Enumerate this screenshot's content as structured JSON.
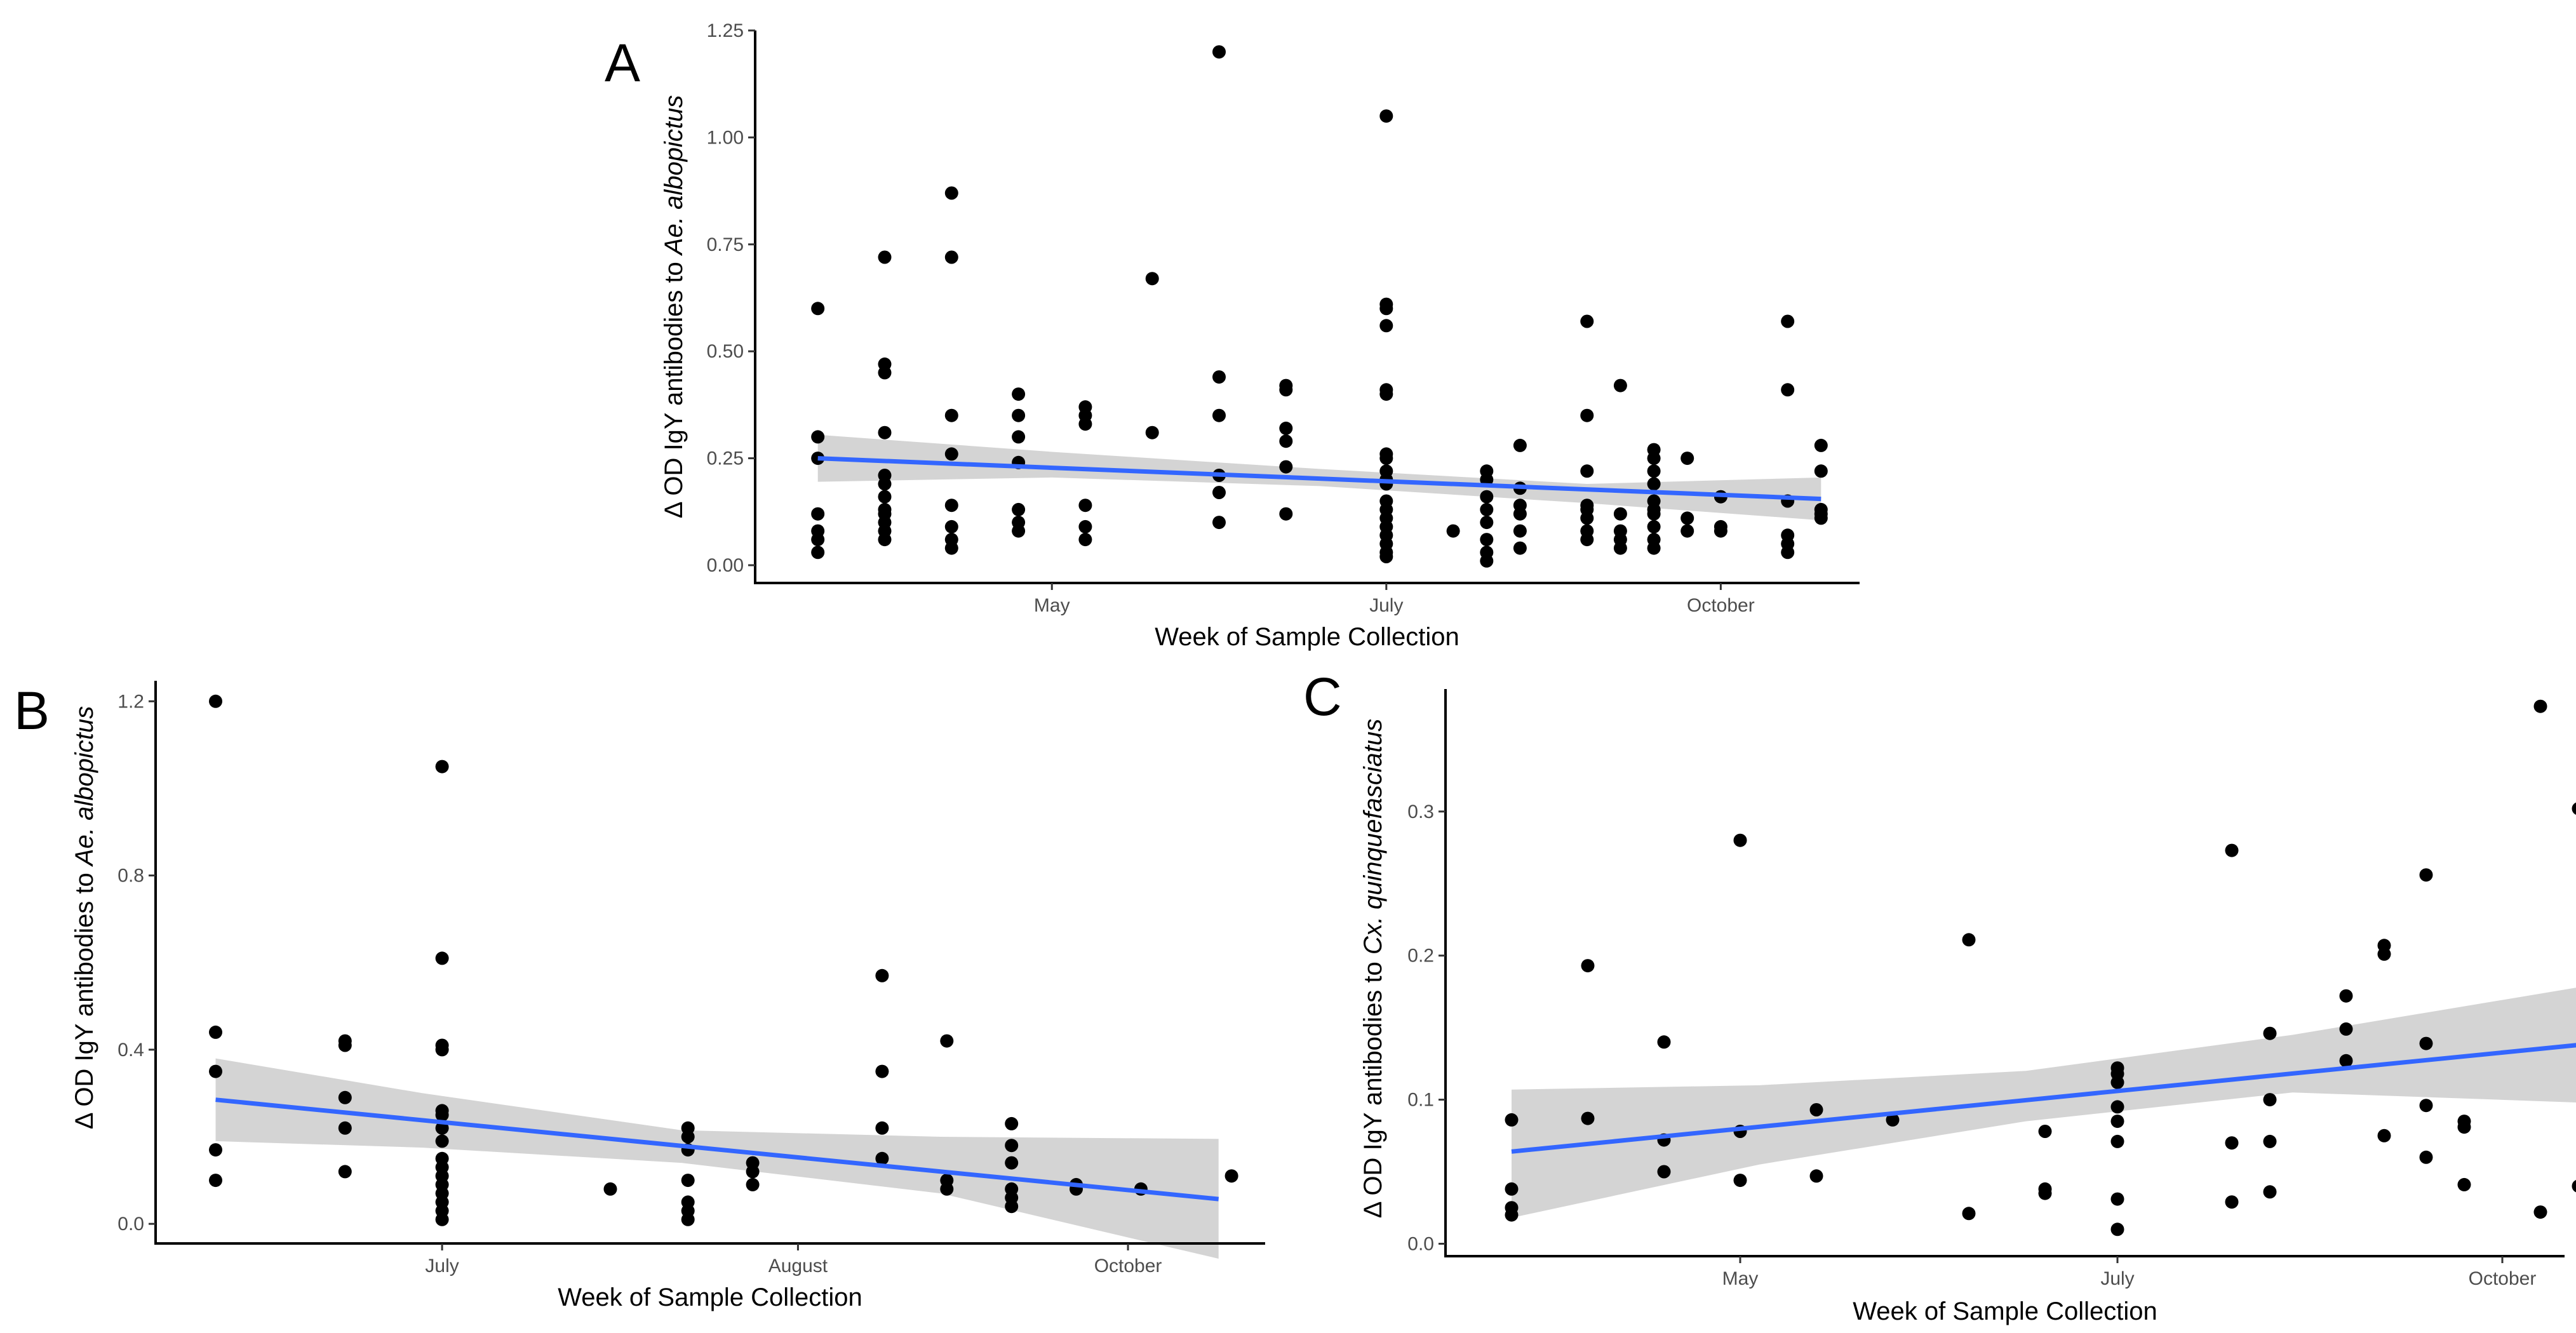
{
  "colors": {
    "fit": "#3366ff",
    "band": "#cccccc",
    "point": "#000000"
  },
  "chart_data": [
    {
      "id": "A",
      "type": "scatter",
      "panel_label": "A",
      "xlabel": "Week of Sample Collection",
      "ylabel_prefix": "Δ OD IgY antibodies to ",
      "ylabel_species": "Ae. albopictus",
      "xlim": [
        0,
        32
      ],
      "ylim": [
        0,
        1.25
      ],
      "yticks": [
        0,
        0.25,
        0.5,
        0.75,
        1.0,
        1.25
      ],
      "ytick_labels": [
        "0.00",
        "0.25",
        "0.50",
        "0.75",
        "1.00",
        "1.25"
      ],
      "xticks": [
        {
          "pos": 8,
          "label": "May"
        },
        {
          "pos": 18,
          "label": "July"
        },
        {
          "pos": 28,
          "label": "October"
        }
      ],
      "fit": {
        "x": [
          1,
          31
        ],
        "y": [
          0.25,
          0.155
        ]
      },
      "band": {
        "x": [
          1,
          8,
          16,
          24,
          31
        ],
        "upper": [
          0.305,
          0.265,
          0.225,
          0.19,
          0.205
        ],
        "lower": [
          0.195,
          0.205,
          0.185,
          0.145,
          0.105
        ]
      },
      "points": [
        [
          1,
          0.6
        ],
        [
          1,
          0.3
        ],
        [
          1,
          0.25
        ],
        [
          1,
          0.12
        ],
        [
          1,
          0.08
        ],
        [
          1,
          0.06
        ],
        [
          1,
          0.03
        ],
        [
          3,
          0.72
        ],
        [
          3,
          0.47
        ],
        [
          3,
          0.45
        ],
        [
          3,
          0.31
        ],
        [
          3,
          0.21
        ],
        [
          3,
          0.19
        ],
        [
          3,
          0.16
        ],
        [
          3,
          0.13
        ],
        [
          3,
          0.12
        ],
        [
          3,
          0.1
        ],
        [
          3,
          0.08
        ],
        [
          3,
          0.06
        ],
        [
          5,
          0.87
        ],
        [
          5,
          0.72
        ],
        [
          5,
          0.35
        ],
        [
          5,
          0.26
        ],
        [
          5,
          0.14
        ],
        [
          5,
          0.09
        ],
        [
          5,
          0.06
        ],
        [
          5,
          0.04
        ],
        [
          7,
          0.4
        ],
        [
          7,
          0.35
        ],
        [
          7,
          0.3
        ],
        [
          7,
          0.24
        ],
        [
          7,
          0.13
        ],
        [
          7,
          0.1
        ],
        [
          7,
          0.08
        ],
        [
          9,
          0.37
        ],
        [
          9,
          0.35
        ],
        [
          9,
          0.33
        ],
        [
          9,
          0.14
        ],
        [
          9,
          0.09
        ],
        [
          9,
          0.06
        ],
        [
          11,
          0.67
        ],
        [
          11,
          0.31
        ],
        [
          13,
          1.2
        ],
        [
          13,
          0.44
        ],
        [
          13,
          0.35
        ],
        [
          13,
          0.21
        ],
        [
          13,
          0.17
        ],
        [
          13,
          0.1
        ],
        [
          15,
          0.42
        ],
        [
          15,
          0.41
        ],
        [
          15,
          0.32
        ],
        [
          15,
          0.29
        ],
        [
          15,
          0.23
        ],
        [
          15,
          0.12
        ],
        [
          18,
          1.05
        ],
        [
          18,
          0.61
        ],
        [
          18,
          0.6
        ],
        [
          18,
          0.56
        ],
        [
          18,
          0.41
        ],
        [
          18,
          0.4
        ],
        [
          18,
          0.26
        ],
        [
          18,
          0.25
        ],
        [
          18,
          0.22
        ],
        [
          18,
          0.2
        ],
        [
          18,
          0.19
        ],
        [
          18,
          0.15
        ],
        [
          18,
          0.13
        ],
        [
          18,
          0.11
        ],
        [
          18,
          0.09
        ],
        [
          18,
          0.07
        ],
        [
          18,
          0.05
        ],
        [
          18,
          0.03
        ],
        [
          18,
          0.02
        ],
        [
          20,
          0.08
        ],
        [
          21,
          0.22
        ],
        [
          21,
          0.2
        ],
        [
          21,
          0.16
        ],
        [
          21,
          0.13
        ],
        [
          21,
          0.1
        ],
        [
          21,
          0.06
        ],
        [
          21,
          0.03
        ],
        [
          21,
          0.01
        ],
        [
          22,
          0.28
        ],
        [
          22,
          0.18
        ],
        [
          22,
          0.14
        ],
        [
          22,
          0.12
        ],
        [
          22,
          0.08
        ],
        [
          22,
          0.04
        ],
        [
          24,
          0.57
        ],
        [
          24,
          0.35
        ],
        [
          24,
          0.22
        ],
        [
          24,
          0.14
        ],
        [
          24,
          0.13
        ],
        [
          24,
          0.11
        ],
        [
          24,
          0.08
        ],
        [
          24,
          0.06
        ],
        [
          25,
          0.42
        ],
        [
          25,
          0.12
        ],
        [
          25,
          0.08
        ],
        [
          25,
          0.06
        ],
        [
          25,
          0.04
        ],
        [
          26,
          0.27
        ],
        [
          26,
          0.25
        ],
        [
          26,
          0.22
        ],
        [
          26,
          0.19
        ],
        [
          26,
          0.15
        ],
        [
          26,
          0.13
        ],
        [
          26,
          0.12
        ],
        [
          26,
          0.09
        ],
        [
          26,
          0.06
        ],
        [
          26,
          0.04
        ],
        [
          27,
          0.25
        ],
        [
          27,
          0.11
        ],
        [
          27,
          0.08
        ],
        [
          28,
          0.16
        ],
        [
          28,
          0.09
        ],
        [
          28,
          0.08
        ],
        [
          30,
          0.57
        ],
        [
          30,
          0.41
        ],
        [
          30,
          0.15
        ],
        [
          30,
          0.07
        ],
        [
          30,
          0.05
        ],
        [
          30,
          0.03
        ],
        [
          31,
          0.28
        ],
        [
          31,
          0.22
        ],
        [
          31,
          0.13
        ],
        [
          31,
          0.12
        ],
        [
          31,
          0.11
        ]
      ]
    },
    {
      "id": "B",
      "type": "scatter",
      "panel_label": "B",
      "xlabel": "Week of Sample Collection",
      "ylabel_prefix": "Δ OD IgY antibodies to ",
      "ylabel_species": "Ae. albopictus",
      "xlim": [
        0,
        17
      ],
      "ylim": [
        -0.08,
        1.25
      ],
      "yticks": [
        0,
        0.4,
        0.8,
        1.2
      ],
      "ytick_labels": [
        "0.0",
        "0.4",
        "0.8",
        "1.2"
      ],
      "xticks": [
        {
          "pos": 4.3,
          "label": "July"
        },
        {
          "pos": 9.8,
          "label": "August"
        },
        {
          "pos": 14.9,
          "label": "October"
        }
      ],
      "fit": {
        "x": [
          0.8,
          16.3
        ],
        "y": [
          0.285,
          0.057
        ]
      },
      "band": {
        "x": [
          0.8,
          4,
          8,
          12,
          16.3
        ],
        "upper": [
          0.38,
          0.3,
          0.215,
          0.2,
          0.195
        ],
        "lower": [
          0.19,
          0.175,
          0.14,
          0.07,
          -0.08
        ]
      },
      "points": [
        [
          0.8,
          1.2
        ],
        [
          0.8,
          0.44
        ],
        [
          0.8,
          0.35
        ],
        [
          0.8,
          0.17
        ],
        [
          0.8,
          0.1
        ],
        [
          2.8,
          0.42
        ],
        [
          2.8,
          0.41
        ],
        [
          2.8,
          0.29
        ],
        [
          2.8,
          0.22
        ],
        [
          2.8,
          0.12
        ],
        [
          4.3,
          1.05
        ],
        [
          4.3,
          0.61
        ],
        [
          4.3,
          0.41
        ],
        [
          4.3,
          0.4
        ],
        [
          4.3,
          0.26
        ],
        [
          4.3,
          0.25
        ],
        [
          4.3,
          0.22
        ],
        [
          4.3,
          0.19
        ],
        [
          4.3,
          0.15
        ],
        [
          4.3,
          0.13
        ],
        [
          4.3,
          0.11
        ],
        [
          4.3,
          0.09
        ],
        [
          4.3,
          0.07
        ],
        [
          4.3,
          0.05
        ],
        [
          4.3,
          0.03
        ],
        [
          4.3,
          0.01
        ],
        [
          6.9,
          0.08
        ],
        [
          8.1,
          0.22
        ],
        [
          8.1,
          0.2
        ],
        [
          8.1,
          0.17
        ],
        [
          8.1,
          0.1
        ],
        [
          8.1,
          0.05
        ],
        [
          8.1,
          0.03
        ],
        [
          8.1,
          0.01
        ],
        [
          9.1,
          0.14
        ],
        [
          9.1,
          0.12
        ],
        [
          9.1,
          0.09
        ],
        [
          11.1,
          0.57
        ],
        [
          11.1,
          0.35
        ],
        [
          11.1,
          0.22
        ],
        [
          11.1,
          0.15
        ],
        [
          12.1,
          0.42
        ],
        [
          12.1,
          0.1
        ],
        [
          12.1,
          0.08
        ],
        [
          13.1,
          0.23
        ],
        [
          13.1,
          0.18
        ],
        [
          13.1,
          0.14
        ],
        [
          13.1,
          0.08
        ],
        [
          13.1,
          0.06
        ],
        [
          13.1,
          0.04
        ],
        [
          14.1,
          0.09
        ],
        [
          14.1,
          0.08
        ],
        [
          15.1,
          0.08
        ],
        [
          16.5,
          0.11
        ]
      ]
    },
    {
      "id": "C",
      "type": "scatter",
      "panel_label": "C",
      "xlabel": "Week of Sample Collection",
      "ylabel_prefix": "Δ OD IgY antibodies to ",
      "ylabel_species": "Cx. quinquefasciatus",
      "xlim": [
        0,
        29
      ],
      "ylim": [
        -0.002,
        0.385
      ],
      "yticks": [
        0,
        0.1,
        0.2,
        0.3
      ],
      "ytick_labels": [
        "0.0",
        "0.1",
        "0.2",
        "0.3"
      ],
      "xticks": [
        {
          "pos": 7.5,
          "label": "May"
        },
        {
          "pos": 17.4,
          "label": "July"
        },
        {
          "pos": 27.5,
          "label": "October"
        }
      ],
      "fit": {
        "x": [
          1.5,
          29.5
        ],
        "y": [
          0.064,
          0.138
        ]
      },
      "band": {
        "x": [
          1.5,
          8,
          15,
          22,
          29.5
        ],
        "upper": [
          0.107,
          0.11,
          0.12,
          0.145,
          0.178
        ],
        "lower": [
          0.018,
          0.055,
          0.085,
          0.105,
          0.098
        ]
      },
      "points": [
        [
          1.5,
          0.086
        ],
        [
          1.5,
          0.038
        ],
        [
          1.5,
          0.025
        ],
        [
          1.5,
          0.02
        ],
        [
          3.5,
          0.193
        ],
        [
          3.5,
          0.087
        ],
        [
          5.5,
          0.14
        ],
        [
          5.5,
          0.072
        ],
        [
          5.5,
          0.05
        ],
        [
          7.5,
          0.28
        ],
        [
          7.5,
          0.078
        ],
        [
          7.5,
          0.044
        ],
        [
          9.5,
          0.093
        ],
        [
          9.5,
          0.047
        ],
        [
          11.5,
          0.086
        ],
        [
          13.5,
          0.211
        ],
        [
          13.5,
          0.021
        ],
        [
          15.5,
          0.078
        ],
        [
          15.5,
          0.038
        ],
        [
          15.5,
          0.035
        ],
        [
          17.4,
          0.122
        ],
        [
          17.4,
          0.118
        ],
        [
          17.4,
          0.112
        ],
        [
          17.4,
          0.095
        ],
        [
          17.4,
          0.085
        ],
        [
          17.4,
          0.071
        ],
        [
          17.4,
          0.031
        ],
        [
          17.4,
          0.01
        ],
        [
          20.4,
          0.273
        ],
        [
          20.4,
          0.07
        ],
        [
          20.4,
          0.029
        ],
        [
          21.4,
          0.146
        ],
        [
          21.4,
          0.1
        ],
        [
          21.4,
          0.071
        ],
        [
          21.4,
          0.036
        ],
        [
          23.4,
          0.172
        ],
        [
          23.4,
          0.149
        ],
        [
          23.4,
          0.127
        ],
        [
          24.4,
          0.207
        ],
        [
          24.4,
          0.201
        ],
        [
          24.4,
          0.075
        ],
        [
          25.5,
          0.256
        ],
        [
          25.5,
          0.139
        ],
        [
          25.5,
          0.096
        ],
        [
          25.5,
          0.06
        ],
        [
          26.5,
          0.085
        ],
        [
          26.5,
          0.081
        ],
        [
          26.5,
          0.041
        ],
        [
          28.5,
          0.373
        ],
        [
          28.5,
          0.022
        ],
        [
          29.5,
          0.302
        ],
        [
          29.5,
          0.04
        ]
      ]
    }
  ]
}
